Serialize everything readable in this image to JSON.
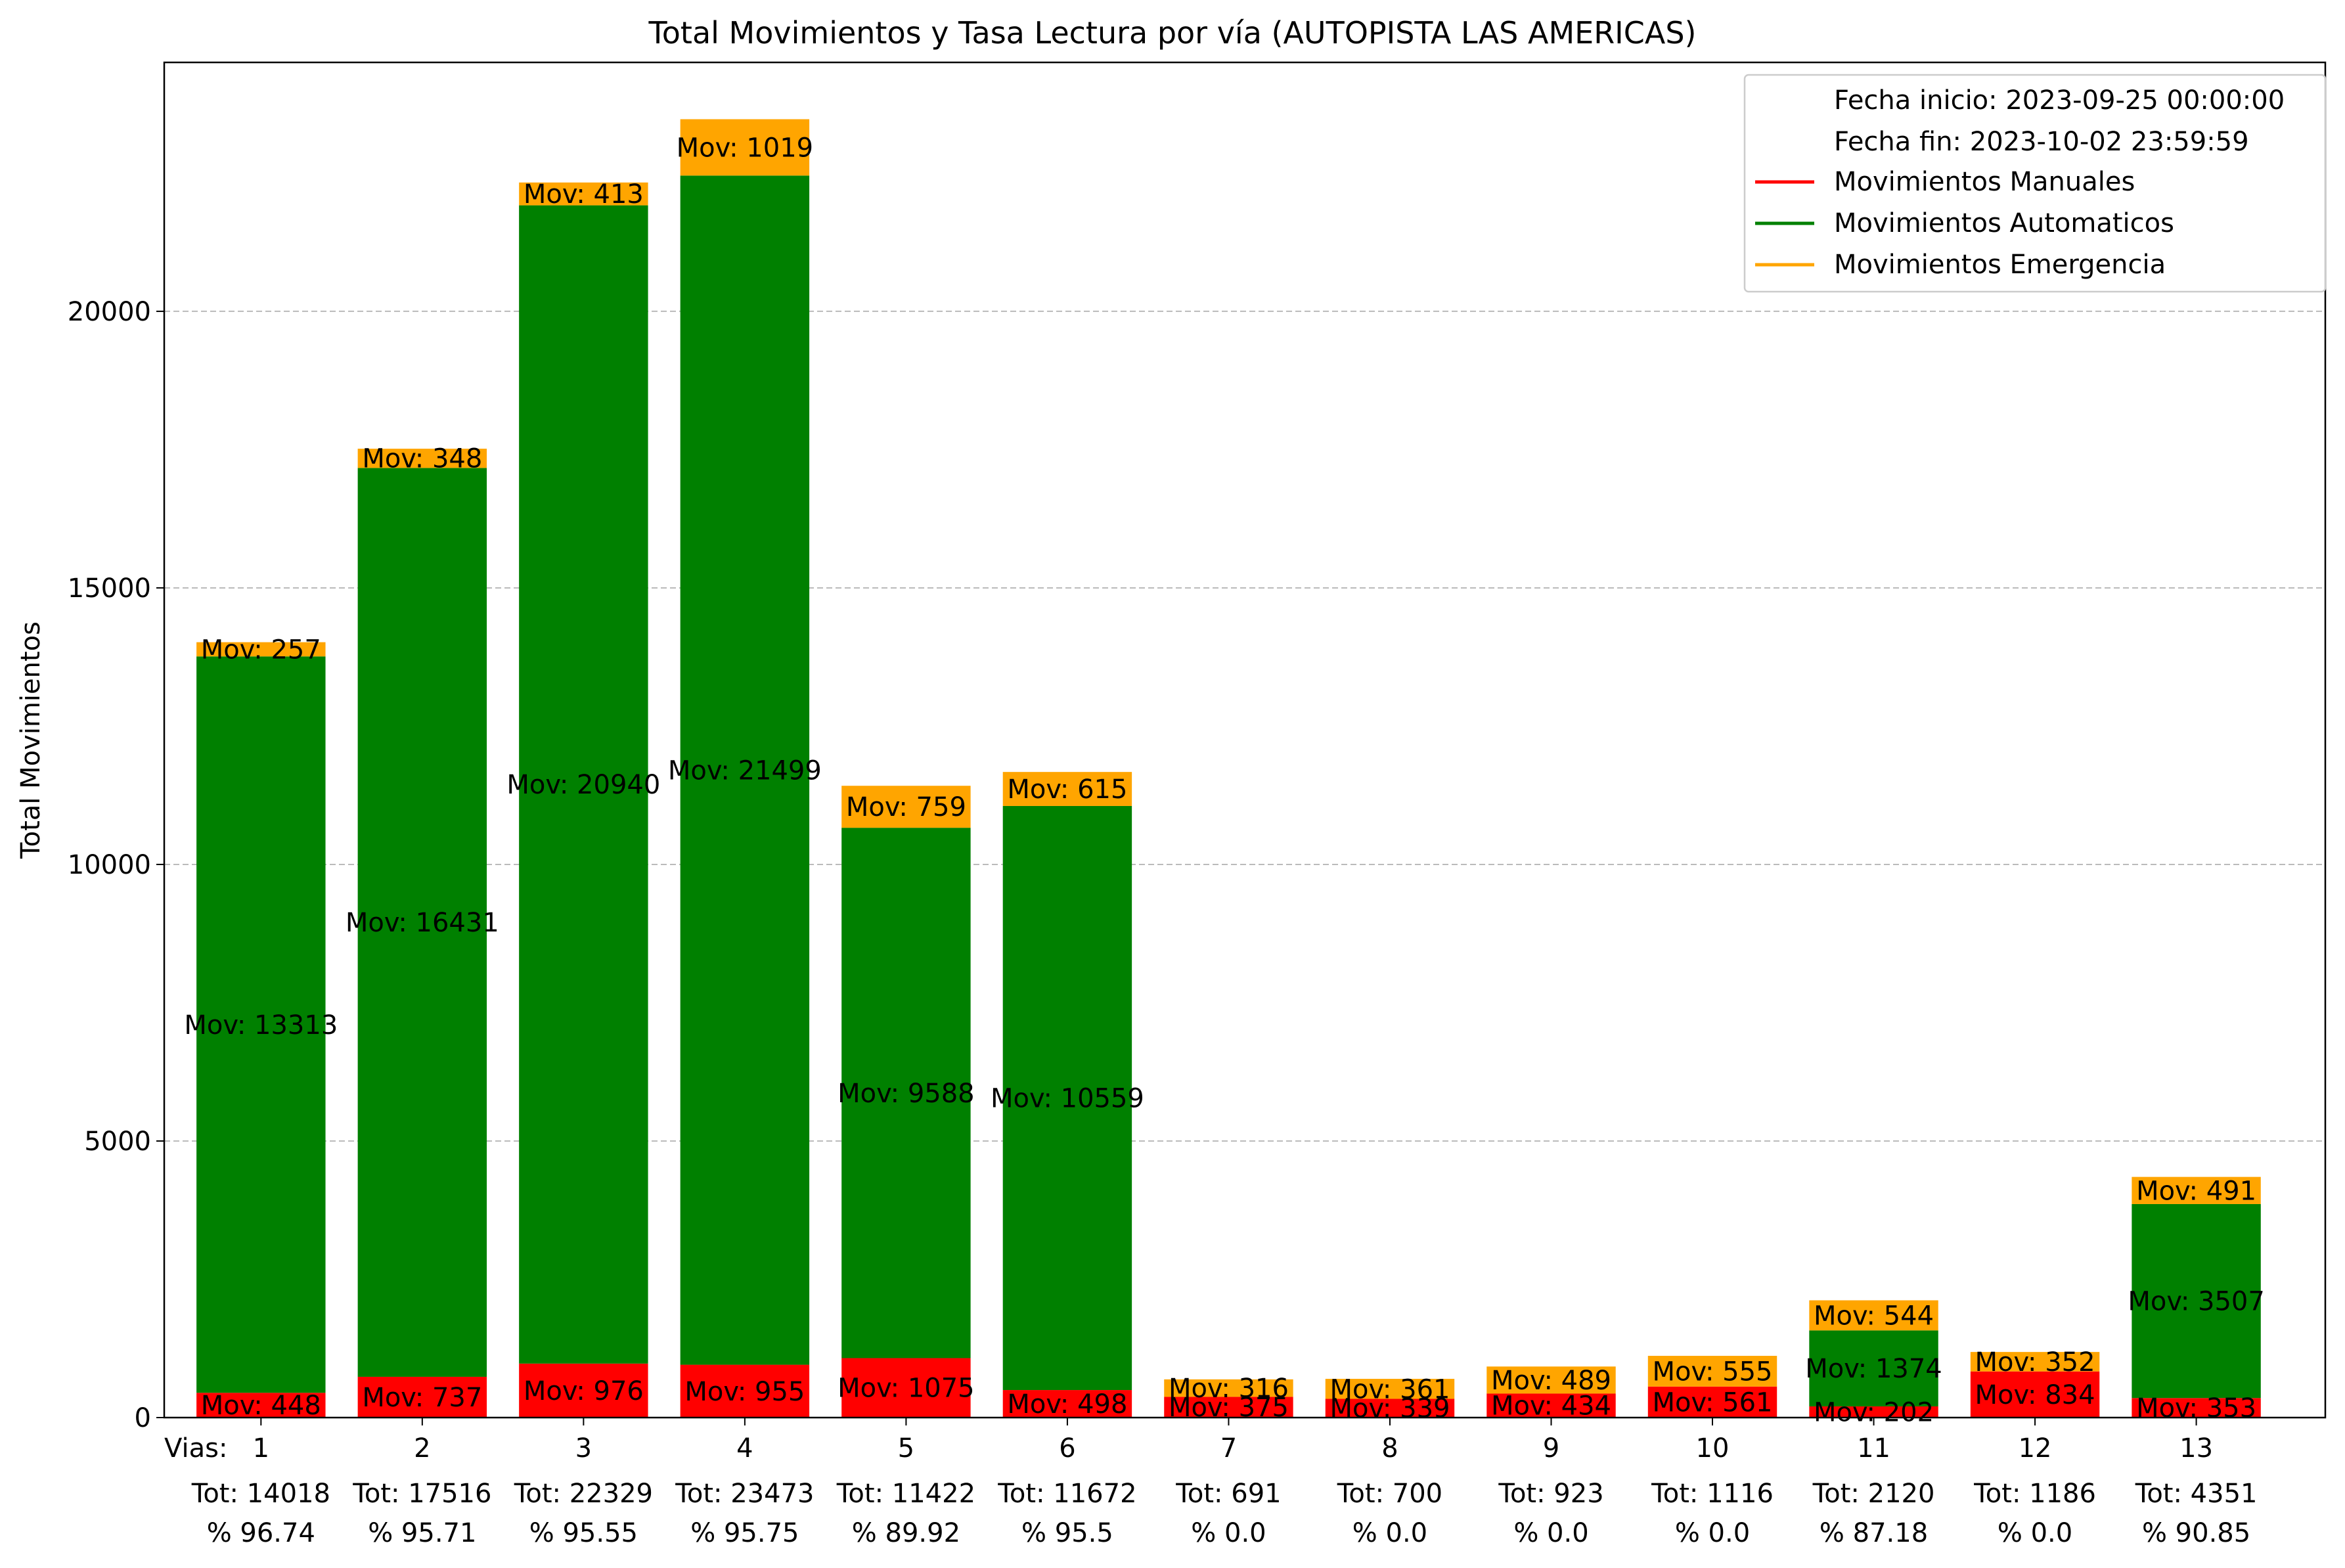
{
  "chart_data": {
    "type": "bar",
    "stacked": true,
    "title": "Total Movimientos y Tasa Lectura por vía (AUTOPISTA LAS AMERICAS)",
    "ylabel": "Total Movimientos",
    "xlabel_prefix": "Vias:",
    "ylim": [
      0,
      24500
    ],
    "yticks": [
      0,
      5000,
      10000,
      15000,
      20000
    ],
    "grid": "y dashed",
    "legend_position": "top-right",
    "categories": [
      "1",
      "2",
      "3",
      "4",
      "5",
      "6",
      "7",
      "8",
      "9",
      "10",
      "11",
      "12",
      "13"
    ],
    "series": [
      {
        "name": "Movimientos Manuales",
        "color": "#ff0000",
        "values": [
          448,
          737,
          976,
          955,
          1075,
          498,
          375,
          339,
          434,
          561,
          202,
          834,
          353
        ]
      },
      {
        "name": "Movimientos Automaticos",
        "color": "#008000",
        "values": [
          13313,
          16431,
          20940,
          21499,
          9588,
          10559,
          0,
          0,
          0,
          0,
          1374,
          0,
          3507
        ]
      },
      {
        "name": "Movimientos Emergencia",
        "color": "#ffa500",
        "values": [
          257,
          348,
          413,
          1019,
          759,
          615,
          316,
          361,
          489,
          555,
          544,
          352,
          491
        ]
      }
    ],
    "label_prefix": "Mov: ",
    "auto_labels_visible": [
      true,
      true,
      true,
      true,
      true,
      true,
      false,
      false,
      false,
      false,
      true,
      false,
      true
    ],
    "totals": [
      14018,
      17516,
      22329,
      23473,
      11422,
      11672,
      691,
      700,
      923,
      1116,
      2120,
      1186,
      4351
    ],
    "total_prefix": "Tot: ",
    "rates": [
      "96.74",
      "95.71",
      "95.55",
      "95.75",
      "89.92",
      "95.5",
      "0.0",
      "0.0",
      "0.0",
      "0.0",
      "87.18",
      "0.0",
      "90.85"
    ],
    "rate_prefix": "% ",
    "rate_good_color": "#008000",
    "rate_bad_color": "#ff0000",
    "legend": {
      "date_start": "Fecha inicio: 2023-09-25 00:00:00",
      "date_end": "Fecha fin: 2023-10-02 23:59:59",
      "entries": [
        {
          "label": "Movimientos Manuales",
          "color": "#ff0000"
        },
        {
          "label": "Movimientos Automaticos",
          "color": "#008000"
        },
        {
          "label": "Movimientos Emergencia",
          "color": "#ffa500"
        }
      ]
    }
  }
}
